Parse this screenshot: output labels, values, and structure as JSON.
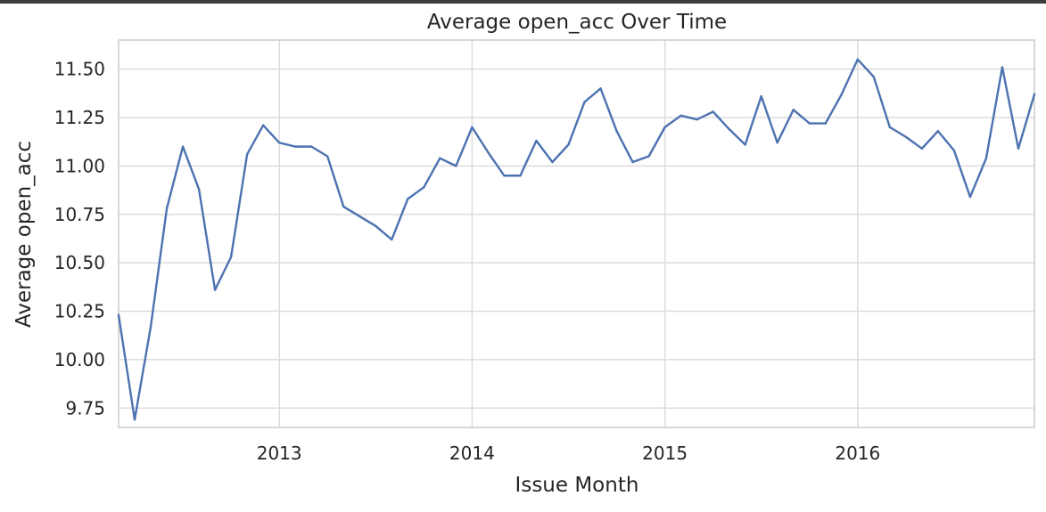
{
  "chart_data": {
    "type": "line",
    "title": "Average open_acc Over Time",
    "xlabel": "Issue Month",
    "ylabel": "Average open_acc",
    "x_start": "2012-03",
    "x_end": "2016-12",
    "xlim": [
      "2012-03",
      "2016-12"
    ],
    "ylim": [
      9.65,
      11.65
    ],
    "grid": true,
    "x_ticks": [
      {
        "label": "2013",
        "date": "2013-01"
      },
      {
        "label": "2014",
        "date": "2014-01"
      },
      {
        "label": "2015",
        "date": "2015-01"
      },
      {
        "label": "2016",
        "date": "2016-01"
      }
    ],
    "y_ticks": [
      {
        "label": "9.75",
        "value": 9.75
      },
      {
        "label": "10.00",
        "value": 10.0
      },
      {
        "label": "10.25",
        "value": 10.25
      },
      {
        "label": "10.50",
        "value": 10.5
      },
      {
        "label": "10.75",
        "value": 10.75
      },
      {
        "label": "11.00",
        "value": 11.0
      },
      {
        "label": "11.25",
        "value": 11.25
      },
      {
        "label": "11.50",
        "value": 11.5
      }
    ],
    "series": [
      {
        "color": "#4c72b0",
        "x": [
          "2012-03",
          "2012-04",
          "2012-05",
          "2012-06",
          "2012-07",
          "2012-08",
          "2012-09",
          "2012-10",
          "2012-11",
          "2012-12",
          "2013-01",
          "2013-02",
          "2013-03",
          "2013-04",
          "2013-05",
          "2013-06",
          "2013-07",
          "2013-08",
          "2013-09",
          "2013-10",
          "2013-11",
          "2013-12",
          "2014-01",
          "2014-02",
          "2014-03",
          "2014-04",
          "2014-05",
          "2014-06",
          "2014-07",
          "2014-08",
          "2014-09",
          "2014-10",
          "2014-11",
          "2014-12",
          "2015-01",
          "2015-02",
          "2015-03",
          "2015-04",
          "2015-05",
          "2015-06",
          "2015-07",
          "2015-08",
          "2015-09",
          "2015-10",
          "2015-11",
          "2015-12",
          "2016-01",
          "2016-02",
          "2016-03",
          "2016-04",
          "2016-05",
          "2016-06",
          "2016-07",
          "2016-08",
          "2016-09",
          "2016-10",
          "2016-11",
          "2016-12"
        ],
        "values": [
          10.23,
          9.69,
          10.17,
          10.78,
          11.1,
          10.88,
          10.36,
          10.53,
          11.06,
          11.21,
          11.12,
          11.1,
          11.1,
          11.05,
          10.79,
          10.74,
          10.69,
          10.62,
          10.83,
          10.89,
          11.04,
          11.0,
          11.2,
          11.07,
          10.95,
          10.95,
          11.13,
          11.02,
          11.11,
          11.33,
          11.4,
          11.18,
          11.02,
          11.05,
          11.2,
          11.26,
          11.24,
          11.28,
          11.19,
          11.11,
          11.36,
          11.12,
          11.29,
          11.22,
          11.22,
          11.37,
          11.55,
          11.46,
          11.2,
          11.15,
          11.09,
          11.18,
          11.08,
          10.84,
          11.04,
          11.51,
          11.09,
          11.37
        ]
      }
    ]
  }
}
